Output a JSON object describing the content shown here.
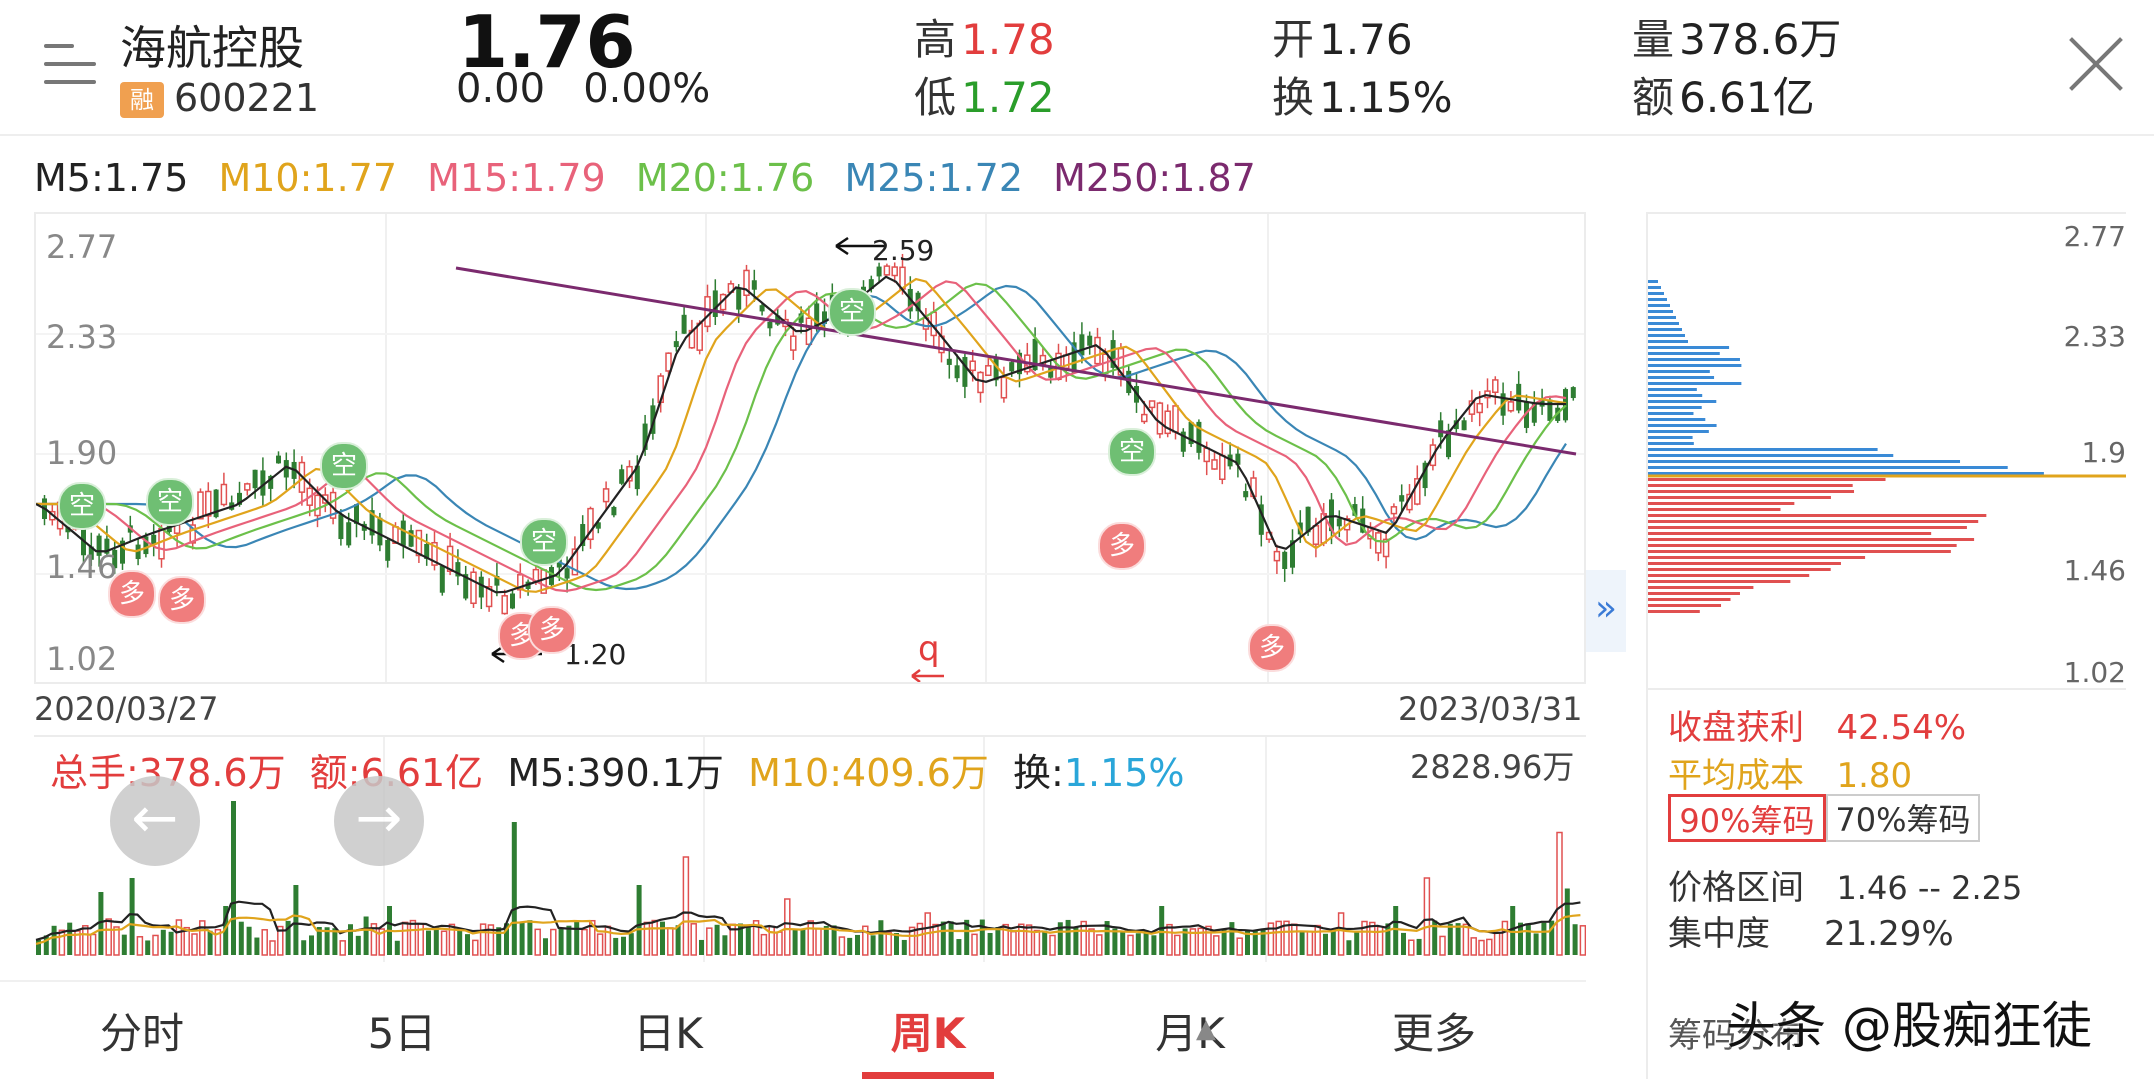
{
  "header": {
    "stock_name": "海航控股",
    "rong_badge": "融",
    "stock_code": "600221",
    "price": "1.76",
    "change": "0.00",
    "change_pct": "0.00%",
    "high_label": "高",
    "high_value": "1.78",
    "low_label": "低",
    "low_value": "1.72",
    "open_label": "开",
    "open_value": "1.76",
    "turnover_label": "换",
    "turnover_value": "1.15%",
    "volume_label": "量",
    "volume_value": "378.6万",
    "amount_label": "额",
    "amount_value": "6.61亿"
  },
  "ma": [
    {
      "label": "M5:1.75",
      "color": "#222222"
    },
    {
      "label": "M10:1.77",
      "color": "#e0a41c"
    },
    {
      "label": "M15:1.79",
      "color": "#e8627a"
    },
    {
      "label": "M20:1.76",
      "color": "#6cc04a"
    },
    {
      "label": "M25:1.72",
      "color": "#3a86b5"
    },
    {
      "label": "M250:1.87",
      "color": "#7b2a6e"
    }
  ],
  "kline": {
    "y_ticks": [
      "2.77",
      "2.33",
      "1.90",
      "1.46",
      "1.02"
    ],
    "date_start": "2020/03/27",
    "date_end": "2023/03/31",
    "ann_high": "2.59",
    "ann_low": "1.20",
    "kong": "空",
    "duo": "多"
  },
  "volume": {
    "total_label": "总手:378.6万",
    "amount_label": "额:6.61亿",
    "m5_label": "M5:390.1万",
    "m10_label": "M10:409.6万",
    "turn_prefix": "换:",
    "turn_value": "1.15%",
    "max_label": "2828.96万"
  },
  "chip": {
    "axis": [
      "2.77",
      "2.33",
      "1.9",
      "1.46",
      "1.02"
    ],
    "profit_label": "收盘获利",
    "profit_value": "42.54%",
    "cost_label": "平均成本",
    "cost_value": "1.80",
    "tab_90": "90%筹码",
    "tab_70": "70%筹码",
    "range_label": "价格区间",
    "range_value": "1.46 -- 2.25",
    "conc_label": "集中度",
    "conc_value": "21.29%",
    "footer": "筹码分布"
  },
  "tabs": [
    "分时",
    "5日",
    "日K",
    "周K",
    "月K",
    "更多"
  ],
  "active_tab": "周K",
  "watermark": "头条 @股痴狂徒",
  "icons": {
    "menu": "menu-icon",
    "close": "close-icon",
    "left": "arrow-left-icon",
    "right": "arrow-right-icon",
    "expand": "double-chevron-right-icon",
    "collapse": "triangle-up-icon"
  }
}
